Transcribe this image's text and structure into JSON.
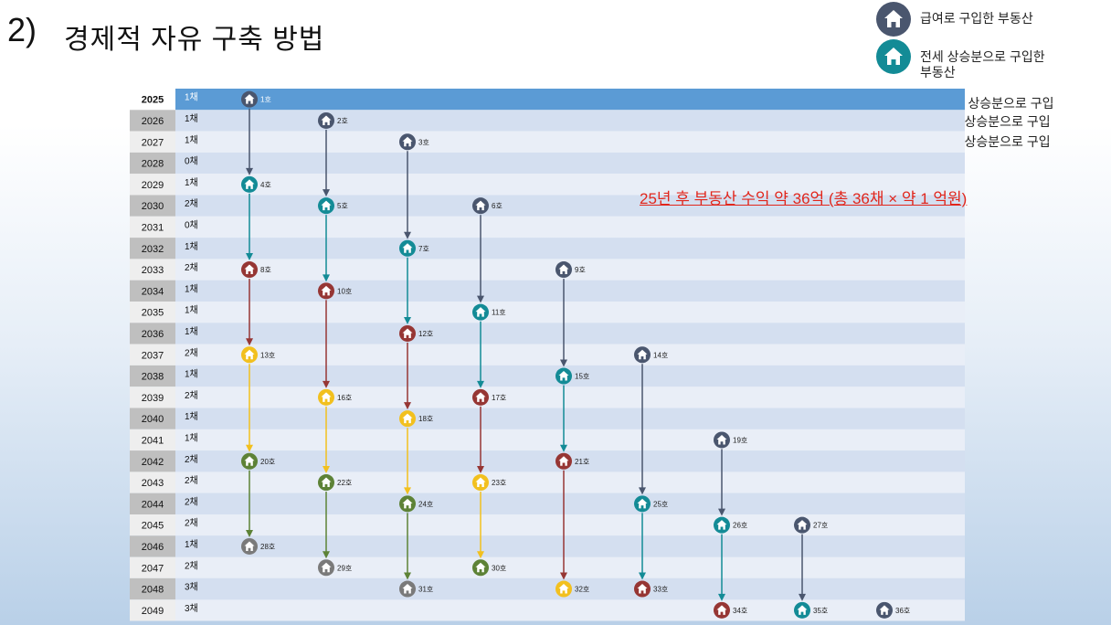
{
  "title": {
    "number": "2)",
    "text": "경제적 자유 구축 방법"
  },
  "legend": {
    "salary": "급여로 구입한 부동산",
    "jeonse_line1": "전세 상승분으로 구입한",
    "jeonse_line2": "부동산",
    "first": "첫 번째 상승분으로 구입",
    "second": "두번째 상승분으로 구입",
    "third": "세번째 상승분으로 구입"
  },
  "note": "25년  후 부동산 수익 약 36억 (총 36채 × 약 1 억원)",
  "colors": {
    "navy": "#4a566e",
    "teal": "#138b96",
    "red": "#963634",
    "yellow": "#f2c01e",
    "green": "#5d8236",
    "gray": "#7a7a7a",
    "highlight": "#5b9bd5"
  },
  "rows": [
    {
      "year": "2025",
      "count": "1채"
    },
    {
      "year": "2026",
      "count": "1채"
    },
    {
      "year": "2027",
      "count": "1채"
    },
    {
      "year": "2028",
      "count": "0채"
    },
    {
      "year": "2029",
      "count": "1채"
    },
    {
      "year": "2030",
      "count": "2채"
    },
    {
      "year": "2031",
      "count": "0채"
    },
    {
      "year": "2032",
      "count": "1채"
    },
    {
      "year": "2033",
      "count": "2채"
    },
    {
      "year": "2034",
      "count": "1채"
    },
    {
      "year": "2035",
      "count": "1채"
    },
    {
      "year": "2036",
      "count": "1채"
    },
    {
      "year": "2037",
      "count": "2채"
    },
    {
      "year": "2038",
      "count": "1채"
    },
    {
      "year": "2039",
      "count": "2채"
    },
    {
      "year": "2040",
      "count": "1채"
    },
    {
      "year": "2041",
      "count": "1채"
    },
    {
      "year": "2042",
      "count": "2채"
    },
    {
      "year": "2043",
      "count": "2채"
    },
    {
      "year": "2044",
      "count": "2채"
    },
    {
      "year": "2045",
      "count": "2채"
    },
    {
      "year": "2046",
      "count": "1채"
    },
    {
      "year": "2047",
      "count": "2채"
    },
    {
      "year": "2048",
      "count": "3채"
    },
    {
      "year": "2049",
      "count": "3채"
    }
  ],
  "houses": [
    {
      "label": "1호",
      "year": "2025",
      "column": 1,
      "color": "navy"
    },
    {
      "label": "2호",
      "year": "2026",
      "column": 2,
      "color": "navy"
    },
    {
      "label": "3호",
      "year": "2027",
      "column": 3,
      "color": "navy"
    },
    {
      "label": "4호",
      "year": "2029",
      "column": 1,
      "color": "teal"
    },
    {
      "label": "5호",
      "year": "2030",
      "column": 2,
      "color": "teal"
    },
    {
      "label": "6호",
      "year": "2030",
      "column": 4,
      "color": "navy"
    },
    {
      "label": "7호",
      "year": "2032",
      "column": 3,
      "color": "teal"
    },
    {
      "label": "8호",
      "year": "2033",
      "column": 1,
      "color": "red"
    },
    {
      "label": "9호",
      "year": "2033",
      "column": 5,
      "color": "navy"
    },
    {
      "label": "10호",
      "year": "2034",
      "column": 2,
      "color": "red"
    },
    {
      "label": "11호",
      "year": "2035",
      "column": 4,
      "color": "teal"
    },
    {
      "label": "12호",
      "year": "2036",
      "column": 3,
      "color": "red"
    },
    {
      "label": "13호",
      "year": "2037",
      "column": 1,
      "color": "yellow"
    },
    {
      "label": "14호",
      "year": "2037",
      "column": 6,
      "color": "navy"
    },
    {
      "label": "15호",
      "year": "2038",
      "column": 5,
      "color": "teal"
    },
    {
      "label": "16호",
      "year": "2039",
      "column": 2,
      "color": "yellow"
    },
    {
      "label": "17호",
      "year": "2039",
      "column": 4,
      "color": "red"
    },
    {
      "label": "18호",
      "year": "2040",
      "column": 3,
      "color": "yellow"
    },
    {
      "label": "19호",
      "year": "2041",
      "column": 7,
      "color": "navy"
    },
    {
      "label": "20호",
      "year": "2042",
      "column": 1,
      "color": "green"
    },
    {
      "label": "21호",
      "year": "2042",
      "column": 5,
      "color": "red"
    },
    {
      "label": "22호",
      "year": "2043",
      "column": 2,
      "color": "green"
    },
    {
      "label": "23호",
      "year": "2043",
      "column": 4,
      "color": "yellow"
    },
    {
      "label": "24호",
      "year": "2044",
      "column": 3,
      "color": "green"
    },
    {
      "label": "25호",
      "year": "2044",
      "column": 6,
      "color": "teal"
    },
    {
      "label": "26호",
      "year": "2045",
      "column": 7,
      "color": "teal"
    },
    {
      "label": "27호",
      "year": "2045",
      "column": 8,
      "color": "navy"
    },
    {
      "label": "28호",
      "year": "2046",
      "column": 1,
      "color": "gray"
    },
    {
      "label": "29호",
      "year": "2047",
      "column": 2,
      "color": "gray"
    },
    {
      "label": "30호",
      "year": "2047",
      "column": 4,
      "color": "green"
    },
    {
      "label": "31호",
      "year": "2048",
      "column": 3,
      "color": "gray"
    },
    {
      "label": "32호",
      "year": "2048",
      "column": 5,
      "color": "yellow"
    },
    {
      "label": "33호",
      "year": "2048",
      "column": 6,
      "color": "red"
    },
    {
      "label": "34호",
      "year": "2049",
      "column": 7,
      "color": "red"
    },
    {
      "label": "35호",
      "year": "2049",
      "column": 8,
      "color": "teal"
    },
    {
      "label": "36호",
      "year": "2049",
      "column": 9,
      "color": "navy"
    }
  ],
  "arrows": [
    {
      "from": "2025",
      "to": "2029",
      "column": 1,
      "color": "navy"
    },
    {
      "from": "2029",
      "to": "2033",
      "column": 1,
      "color": "teal"
    },
    {
      "from": "2033",
      "to": "2037",
      "column": 1,
      "color": "red"
    },
    {
      "from": "2037",
      "to": "2042",
      "column": 1,
      "color": "yellow"
    },
    {
      "from": "2042",
      "to": "2046",
      "column": 1,
      "color": "green"
    },
    {
      "from": "2026",
      "to": "2030",
      "column": 2,
      "color": "navy"
    },
    {
      "from": "2030",
      "to": "2034",
      "column": 2,
      "color": "teal"
    },
    {
      "from": "2034",
      "to": "2039",
      "column": 2,
      "color": "red"
    },
    {
      "from": "2039",
      "to": "2043",
      "column": 2,
      "color": "yellow"
    },
    {
      "from": "2043",
      "to": "2047",
      "column": 2,
      "color": "green"
    },
    {
      "from": "2027",
      "to": "2032",
      "column": 3,
      "color": "navy"
    },
    {
      "from": "2032",
      "to": "2036",
      "column": 3,
      "color": "teal"
    },
    {
      "from": "2036",
      "to": "2040",
      "column": 3,
      "color": "red"
    },
    {
      "from": "2040",
      "to": "2044",
      "column": 3,
      "color": "yellow"
    },
    {
      "from": "2044",
      "to": "2048",
      "column": 3,
      "color": "green"
    },
    {
      "from": "2030",
      "to": "2035",
      "column": 4,
      "color": "navy"
    },
    {
      "from": "2035",
      "to": "2039",
      "column": 4,
      "color": "teal"
    },
    {
      "from": "2039",
      "to": "2043",
      "column": 4,
      "color": "red"
    },
    {
      "from": "2043",
      "to": "2047",
      "column": 4,
      "color": "yellow"
    },
    {
      "from": "2033",
      "to": "2038",
      "column": 5,
      "color": "navy"
    },
    {
      "from": "2038",
      "to": "2042",
      "column": 5,
      "color": "teal"
    },
    {
      "from": "2042",
      "to": "2048",
      "column": 5,
      "color": "red"
    },
    {
      "from": "2037",
      "to": "2044",
      "column": 6,
      "color": "navy"
    },
    {
      "from": "2044",
      "to": "2048",
      "column": 6,
      "color": "teal"
    },
    {
      "from": "2041",
      "to": "2045",
      "column": 7,
      "color": "navy"
    },
    {
      "from": "2045",
      "to": "2049",
      "column": 7,
      "color": "teal"
    },
    {
      "from": "2045",
      "to": "2049",
      "column": 8,
      "color": "navy"
    }
  ]
}
